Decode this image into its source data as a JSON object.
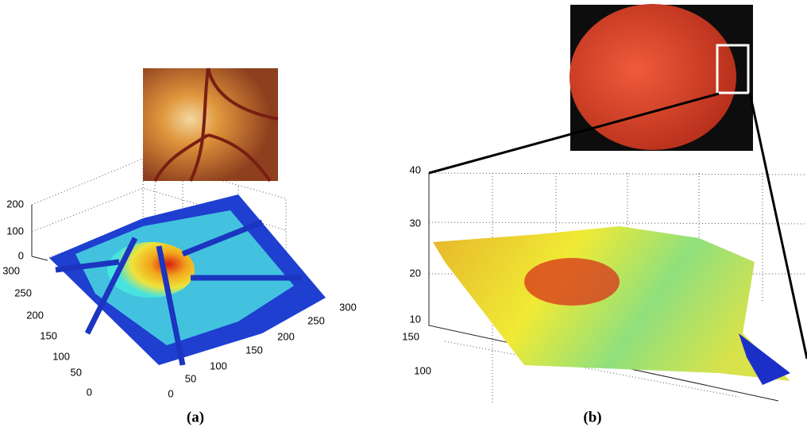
{
  "panels": [
    {
      "caption": "(a)",
      "z_ticks": [
        0,
        100,
        200
      ],
      "y_ticks": [
        300,
        250,
        200,
        150,
        100,
        50,
        0
      ],
      "x_ticks": [
        0,
        50,
        100,
        150,
        200,
        250,
        300
      ]
    },
    {
      "caption": "(b)",
      "z_ticks": [
        40,
        30,
        20,
        10
      ],
      "y_ticks": [
        150,
        100
      ]
    }
  ]
}
